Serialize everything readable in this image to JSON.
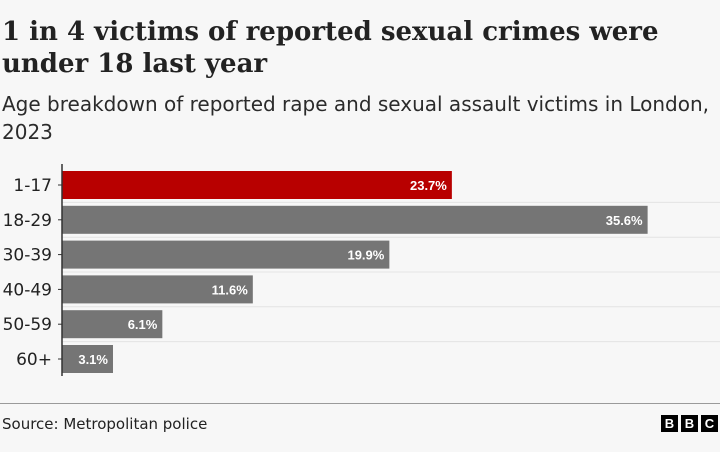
{
  "header": {
    "title": "1 in 4 victims of reported sexual crimes were under 18 last year",
    "subtitle": "Age breakdown of reported rape and sexual assault victims in London, 2023"
  },
  "footer": {
    "source": "Source: Metropolitan police",
    "logo_letters": [
      "B",
      "B",
      "C"
    ]
  },
  "colors": {
    "highlight": "#b80000",
    "default_bar": "#757575",
    "label_text": "#ffffff",
    "axis": "#333333",
    "grid": "#e4e4e4"
  },
  "chart_data": {
    "type": "bar",
    "orientation": "horizontal",
    "categories": [
      "1-17",
      "18-29",
      "30-39",
      "40-49",
      "50-59",
      "60+"
    ],
    "values": [
      23.7,
      35.6,
      19.9,
      11.6,
      6.1,
      3.1
    ],
    "data_labels": [
      "23.7%",
      "35.6%",
      "19.9%",
      "11.6%",
      "6.1%",
      "3.1%"
    ],
    "highlight_index": 0,
    "unit": "%",
    "title": "1 in 4 victims of reported sexual crimes were under 18 last year",
    "xlabel": "",
    "ylabel": "",
    "xlim": [
      0,
      40
    ],
    "grid": true,
    "legend": "none"
  }
}
